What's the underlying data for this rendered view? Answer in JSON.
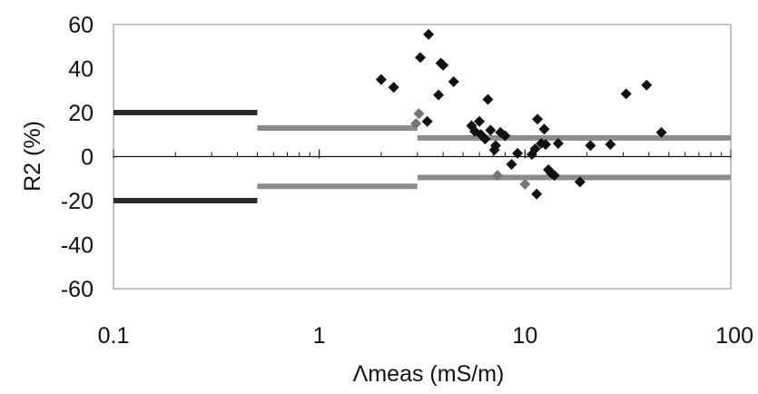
{
  "chart_data": {
    "type": "scatter",
    "xlabel": "Λmeas (mS/m)",
    "ylabel": "R2 (%)",
    "xscale": "log",
    "xlim": [
      0.1,
      100
    ],
    "ylim": [
      -60,
      60
    ],
    "xticks": [
      0.1,
      1,
      10,
      100
    ],
    "xtick_labels": [
      "0.1",
      "1",
      "10",
      "100"
    ],
    "yticks": [
      60,
      40,
      20,
      0,
      -20,
      -40,
      -60
    ],
    "ytick_labels": [
      "60",
      "40",
      "20",
      "0",
      "-20",
      "-40",
      "-60"
    ],
    "grid": false,
    "colors": {
      "points_dark": "#111111",
      "points_grey": "#777777",
      "line_dark": "#2a2a2a",
      "line_grey": "#8c8c8c",
      "axis": "#111111",
      "border": "#888888"
    },
    "step_lines": [
      {
        "x": [
          0.1,
          0.5
        ],
        "y_upper": 20,
        "y_lower": -20,
        "style": "dark"
      },
      {
        "x": [
          0.5,
          3
        ],
        "y_upper": 13,
        "y_lower": -13.5,
        "style": "grey"
      },
      {
        "x": [
          3,
          100
        ],
        "y_upper": 8.5,
        "y_lower": -9.5,
        "style": "grey"
      }
    ],
    "points_dark": [
      [
        2.0,
        35
      ],
      [
        2.3,
        31.5
      ],
      [
        3.1,
        45
      ],
      [
        3.4,
        55.5
      ],
      [
        3.35,
        16
      ],
      [
        3.8,
        28
      ],
      [
        3.9,
        42.5
      ],
      [
        4.0,
        41.5
      ],
      [
        4.5,
        34
      ],
      [
        5.5,
        14
      ],
      [
        5.7,
        11.5
      ],
      [
        6.0,
        16
      ],
      [
        6.1,
        10
      ],
      [
        6.4,
        8
      ],
      [
        6.6,
        26
      ],
      [
        6.8,
        12
      ],
      [
        7.1,
        3
      ],
      [
        7.2,
        5
      ],
      [
        7.6,
        11
      ],
      [
        8.0,
        9.5
      ],
      [
        8.6,
        -3.5
      ],
      [
        9.2,
        1.5
      ],
      [
        10.8,
        1
      ],
      [
        11.2,
        3.5
      ],
      [
        11.5,
        17
      ],
      [
        11.4,
        -17
      ],
      [
        12.0,
        6
      ],
      [
        12.6,
        5.5
      ],
      [
        12.4,
        12.5
      ],
      [
        13.0,
        -6
      ],
      [
        13.4,
        -7.5
      ],
      [
        13.9,
        -8.5
      ],
      [
        14.5,
        6
      ],
      [
        18.5,
        -11.5
      ],
      [
        20.8,
        5
      ],
      [
        26.0,
        5.5
      ],
      [
        31.0,
        28.5
      ],
      [
        39.0,
        32.5
      ],
      [
        46.0,
        11
      ]
    ],
    "points_grey": [
      [
        3.05,
        19.5
      ],
      [
        2.95,
        15
      ],
      [
        7.35,
        -8.5
      ],
      [
        10.0,
        -12.5
      ]
    ]
  }
}
